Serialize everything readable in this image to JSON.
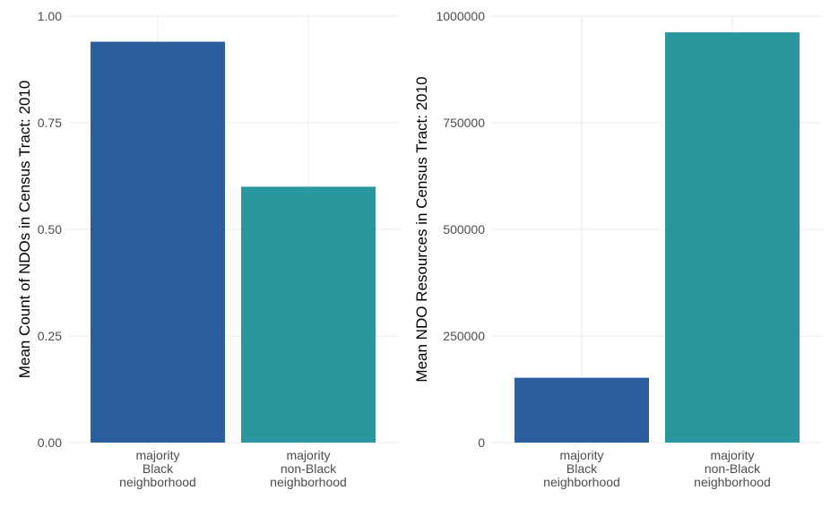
{
  "chart_data": [
    {
      "type": "bar",
      "title": "",
      "xlabel": "",
      "ylabel": "Mean Count of NDOs in Census Tract: 2010",
      "ylim": [
        0,
        1.0
      ],
      "yticks": [
        0,
        0.25,
        0.5,
        0.75,
        1.0
      ],
      "ytick_labels": [
        "0.00",
        "0.25",
        "0.50",
        "0.75",
        "1.00"
      ],
      "categories": [
        [
          "majority",
          "Black",
          "neighborhood"
        ],
        [
          "majority",
          "non-Black",
          "neighborhood"
        ]
      ],
      "values": [
        0.94,
        0.6
      ],
      "colors": [
        "#2c5d9c",
        "#2a979f"
      ],
      "grid": true
    },
    {
      "type": "bar",
      "title": "",
      "xlabel": "",
      "ylabel": "Mean NDO Resources in Census Tract: 2010",
      "ylim": [
        0,
        1000000
      ],
      "yticks": [
        0,
        250000,
        500000,
        750000,
        1000000
      ],
      "ytick_labels": [
        "0",
        "250000",
        "500000",
        "750000",
        "1000000"
      ],
      "categories": [
        [
          "majority",
          "Black",
          "neighborhood"
        ],
        [
          "majority",
          "non-Black",
          "neighborhood"
        ]
      ],
      "values": [
        152000,
        962000
      ],
      "colors": [
        "#2c5d9c",
        "#2a979f"
      ],
      "grid": true
    }
  ]
}
